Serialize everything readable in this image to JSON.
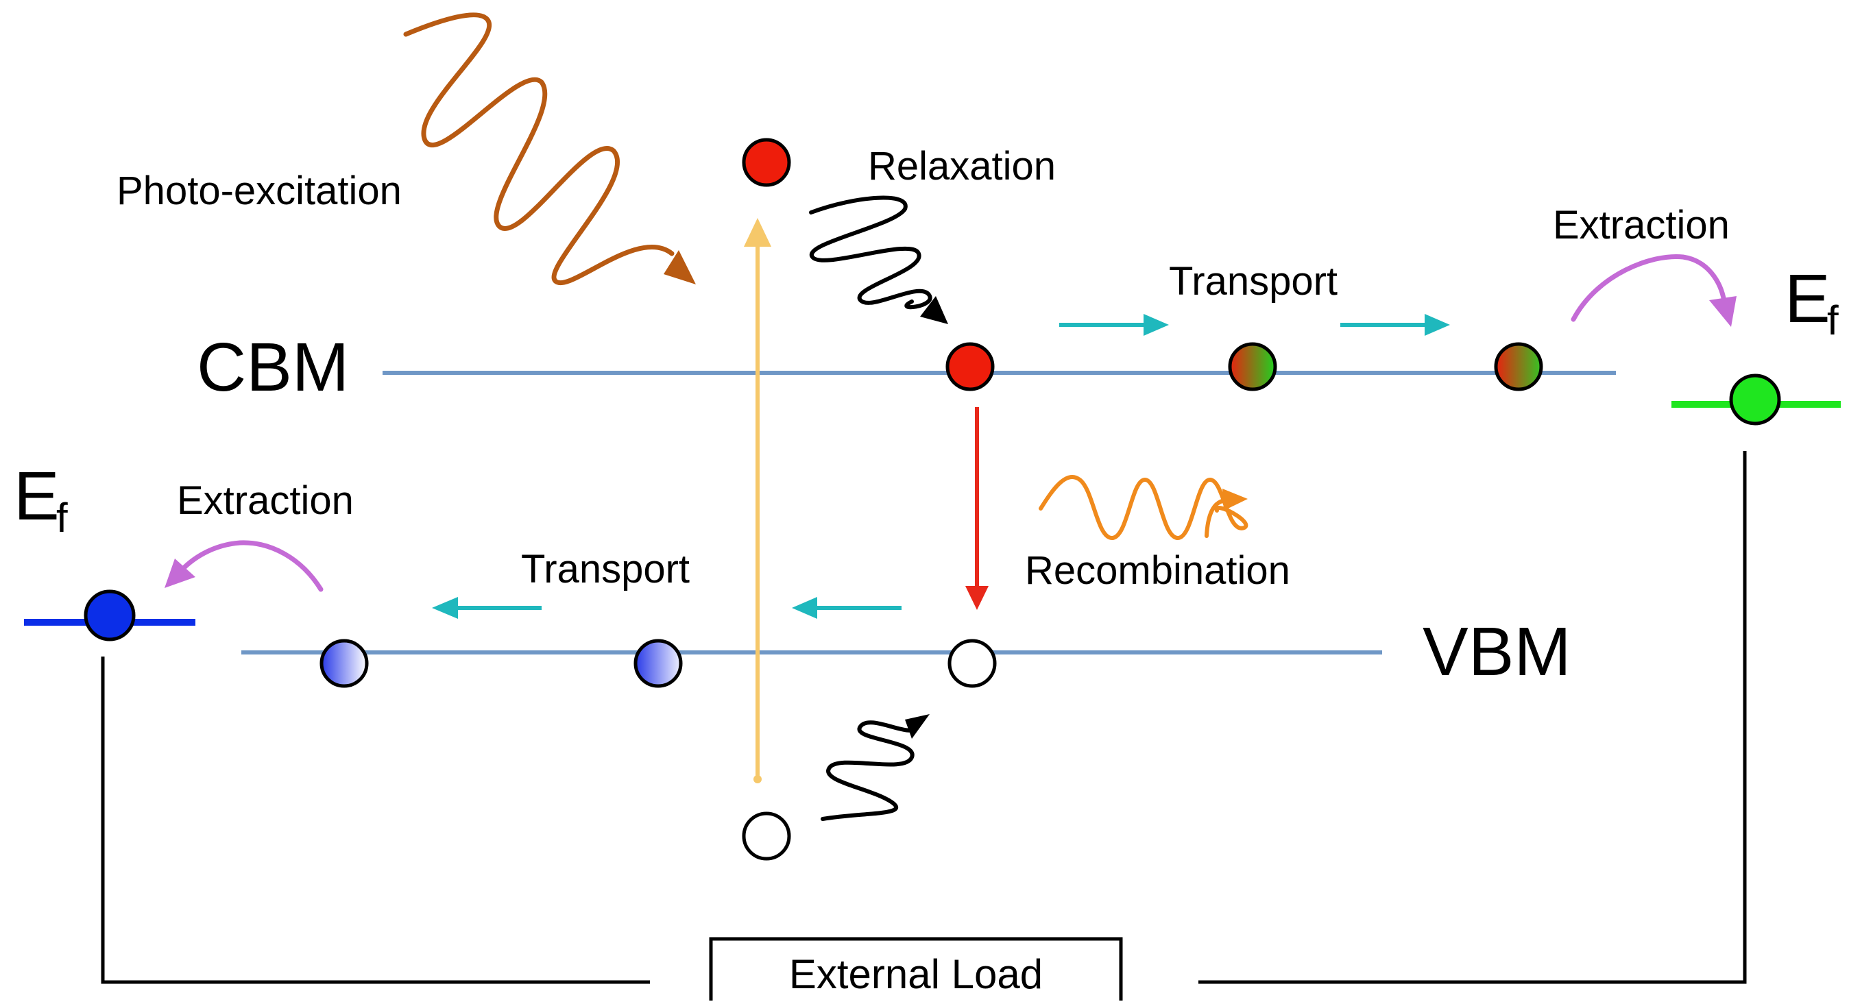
{
  "labels": {
    "photo_excitation": "Photo-excitation",
    "relaxation": "Relaxation",
    "transport_top": "Transport",
    "extraction_right": "Extraction",
    "cbm": "CBM",
    "vbm": "VBM",
    "recombination": "Recombination",
    "extraction_left": "Extraction",
    "transport_bottom": "Transport",
    "fermi_main": "E",
    "fermi_sub": "f",
    "external_load": "External Load"
  },
  "colors": {
    "band_line": "#6f97c6",
    "photon": "#b85a12",
    "excitation_arrow": "#f6c86a",
    "relaxation_wave": "#000000",
    "transport_arrow": "#1fb8bd",
    "extraction_arrow": "#c46bd6",
    "recombination_arrow": "#e8281a",
    "emission_wave": "#f08a1c",
    "electron": "#ee1d0b",
    "hole_fill": "#ffffff",
    "electron_contact": "#1fe61f",
    "hole_contact": "#0b2ee8",
    "wire": "#000000"
  },
  "icons": [
    "photon-wave-icon",
    "relaxation-wave-icon",
    "emission-wave-icon"
  ]
}
